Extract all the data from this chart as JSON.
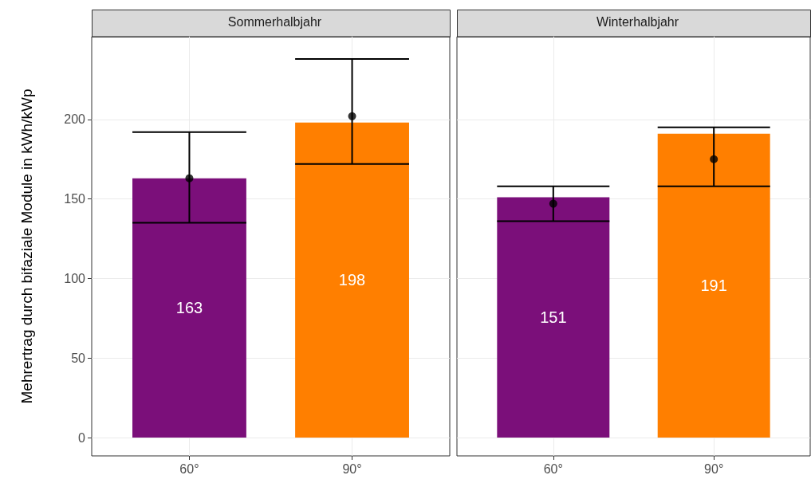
{
  "chart_data": [
    {
      "type": "bar",
      "title": "Sommerhalbjahr",
      "ylabel": "Mehrertrag durch bifaziale Module in kWh/kWp",
      "categories": [
        "60°",
        "90°"
      ],
      "ylim": [
        -11.5,
        252
      ],
      "yticks": [
        0,
        50,
        100,
        150,
        200
      ],
      "grid": true,
      "series": [
        {
          "type": "bar",
          "colors": [
            "#7b0f7a",
            "#ff7f00"
          ],
          "values": [
            163,
            198
          ],
          "data_labels": true,
          "errors": [
            [
              135,
              192
            ],
            [
              172,
              238
            ]
          ]
        },
        {
          "type": "scatter",
          "color": "#000000",
          "x": [
            "60°",
            "90°"
          ],
          "values": [
            163,
            202
          ]
        }
      ]
    },
    {
      "type": "bar",
      "title": "Winterhalbjahr",
      "categories": [
        "60°",
        "90°"
      ],
      "ylim": [
        -11.5,
        252
      ],
      "yticks": [
        0,
        50,
        100,
        150,
        200
      ],
      "grid": true,
      "tick_labels": "x",
      "series": [
        {
          "type": "bar",
          "colors": [
            "#7b0f7a",
            "#ff7f00"
          ],
          "values": [
            151,
            191
          ],
          "data_labels": true,
          "errors": [
            [
              136,
              158
            ],
            [
              158,
              195
            ]
          ]
        },
        {
          "type": "scatter",
          "color": "#000000",
          "x": [
            "60°",
            "90°"
          ],
          "values": [
            147,
            175
          ]
        }
      ]
    }
  ]
}
